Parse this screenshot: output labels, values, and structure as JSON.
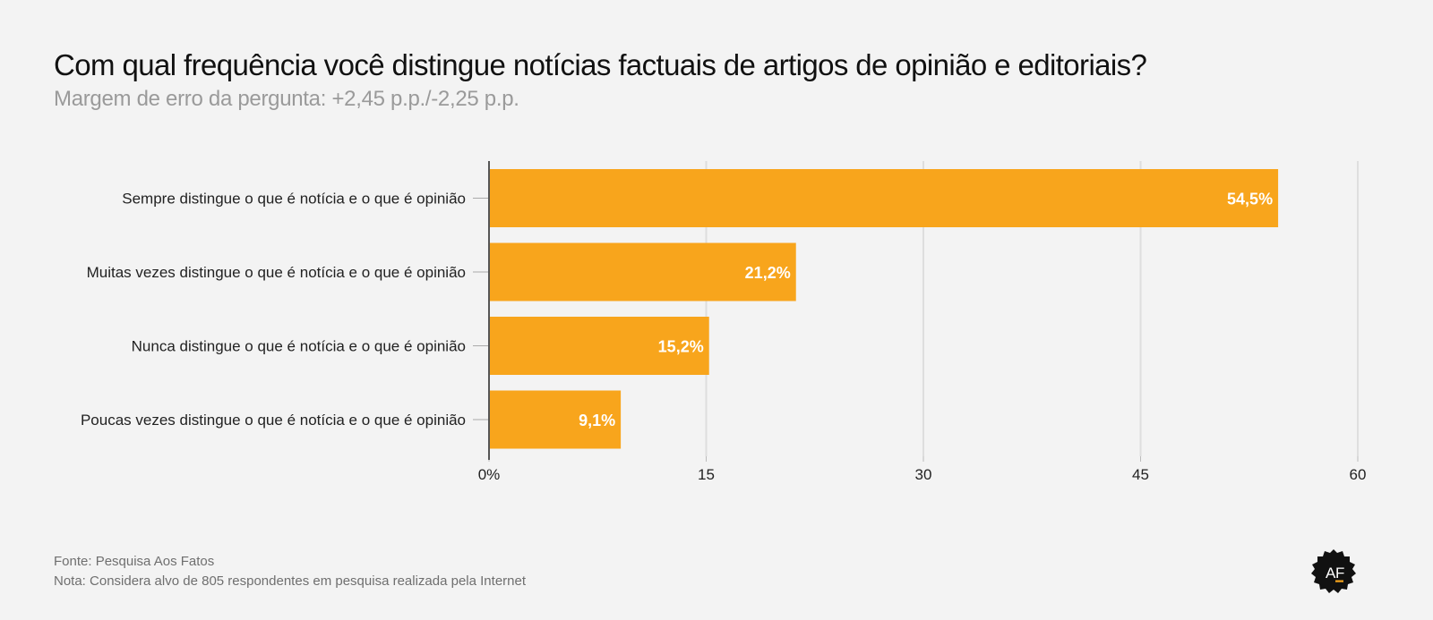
{
  "header": {
    "title": "Com qual frequência você distingue notícias factuais de artigos de opinião e editoriais?",
    "subtitle": "Margem de erro da pergunta: +2,45 p.p./-2,25 p.p."
  },
  "chart_data": {
    "type": "bar",
    "orientation": "horizontal",
    "title": "Com qual frequência você distingue notícias factuais de artigos de opinião e editoriais?",
    "subtitle": "Margem de erro da pergunta: +2,45 p.p./-2,25 p.p.",
    "categories": [
      "Sempre distingue o que é notícia e o que é opinião",
      "Muitas vezes distingue o que é notícia e o que é opinião",
      "Nunca distingue o que é notícia e o que é opinião",
      "Poucas vezes distingue o que é notícia e o que é opinião"
    ],
    "values": [
      54.5,
      21.2,
      15.2,
      9.1
    ],
    "value_labels": [
      "54,5%",
      "21,2%",
      "15,2%",
      "9,1%"
    ],
    "xlabel": "",
    "ylabel": "",
    "xlim": [
      0,
      60
    ],
    "xticks": [
      0,
      15,
      30,
      45,
      60
    ],
    "xtick_labels": [
      "0%",
      "15",
      "30",
      "45",
      "60"
    ],
    "grid": true,
    "legend": "none",
    "bar_color": "#f8a51c"
  },
  "footer": {
    "source": "Fonte: Pesquisa Aos Fatos",
    "note": "Nota: Considera alvo de 805 respondentes em pesquisa realizada pela Internet"
  },
  "logo": {
    "text_left": "A",
    "text_right": "F",
    "name": "aos-fatos-logo"
  },
  "colors": {
    "background": "#f3f3f3",
    "bar": "#f8a51c",
    "grid": "#dedede",
    "axis": "#555555",
    "logo_bg": "#111111",
    "logo_accent": "#f8a51c"
  }
}
